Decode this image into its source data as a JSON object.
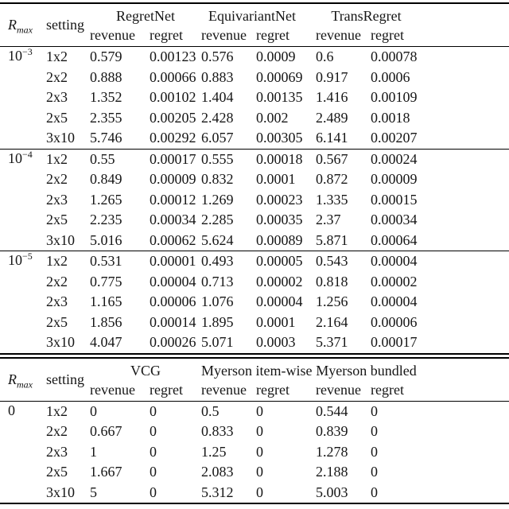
{
  "accent_colors": {
    "rule": "#000000",
    "text": "#161616",
    "background": "#ffffff"
  },
  "table1": {
    "rmax_label": {
      "base": "R",
      "sub": "max"
    },
    "setting_label": "setting",
    "subheaders": [
      "revenue",
      "regret"
    ],
    "groups": [
      "RegretNet",
      "EquivariantNet",
      "TransRegret"
    ],
    "blocks": [
      {
        "rmax": {
          "base": "10",
          "sup": "−3"
        },
        "rows": [
          {
            "setting": "1x2",
            "values": [
              "0.579",
              "0.00123",
              "0.576",
              "0.0009",
              "0.6",
              "0.00078"
            ]
          },
          {
            "setting": "2x2",
            "values": [
              "0.888",
              "0.00066",
              "0.883",
              "0.00069",
              "0.917",
              "0.0006"
            ]
          },
          {
            "setting": "2x3",
            "values": [
              "1.352",
              "0.00102",
              "1.404",
              "0.00135",
              "1.416",
              "0.00109"
            ]
          },
          {
            "setting": "2x5",
            "values": [
              "2.355",
              "0.00205",
              "2.428",
              "0.002",
              "2.489",
              "0.0018"
            ]
          },
          {
            "setting": "3x10",
            "values": [
              "5.746",
              "0.00292",
              "6.057",
              "0.00305",
              "6.141",
              "0.00207"
            ]
          }
        ]
      },
      {
        "rmax": {
          "base": "10",
          "sup": "−4"
        },
        "rows": [
          {
            "setting": "1x2",
            "values": [
              "0.55",
              "0.00017",
              "0.555",
              "0.00018",
              "0.567",
              "0.00024"
            ]
          },
          {
            "setting": "2x2",
            "values": [
              "0.849",
              "0.00009",
              "0.832",
              "0.0001",
              "0.872",
              "0.00009"
            ]
          },
          {
            "setting": "2x3",
            "values": [
              "1.265",
              "0.00012",
              "1.269",
              "0.00023",
              "1.335",
              "0.00015"
            ]
          },
          {
            "setting": "2x5",
            "values": [
              "2.235",
              "0.00034",
              "2.285",
              "0.00035",
              "2.37",
              "0.00034"
            ]
          },
          {
            "setting": "3x10",
            "values": [
              "5.016",
              "0.00062",
              "5.624",
              "0.00089",
              "5.871",
              "0.00064"
            ]
          }
        ]
      },
      {
        "rmax": {
          "base": "10",
          "sup": "−5"
        },
        "rows": [
          {
            "setting": "1x2",
            "values": [
              "0.531",
              "0.00001",
              "0.493",
              "0.00005",
              "0.543",
              "0.00004"
            ]
          },
          {
            "setting": "2x2",
            "values": [
              "0.775",
              "0.00004",
              "0.713",
              "0.00002",
              "0.818",
              "0.00002"
            ]
          },
          {
            "setting": "2x3",
            "values": [
              "1.165",
              "0.00006",
              "1.076",
              "0.00004",
              "1.256",
              "0.00004"
            ]
          },
          {
            "setting": "2x5",
            "values": [
              "1.856",
              "0.00014",
              "1.895",
              "0.0001",
              "2.164",
              "0.00006"
            ]
          },
          {
            "setting": "3x10",
            "values": [
              "4.047",
              "0.00026",
              "5.071",
              "0.0003",
              "5.371",
              "0.00017"
            ]
          }
        ]
      }
    ]
  },
  "table2": {
    "rmax_label": {
      "base": "R",
      "sub": "max"
    },
    "setting_label": "setting",
    "subheaders": [
      "revenue",
      "regret"
    ],
    "groups": [
      "VCG",
      "Myerson item-wise",
      "Myerson bundled"
    ],
    "blocks": [
      {
        "rmax": {
          "base": "0",
          "sup": ""
        },
        "rows": [
          {
            "setting": "1x2",
            "values": [
              "0",
              "0",
              "0.5",
              "0",
              "0.544",
              "0"
            ]
          },
          {
            "setting": "2x2",
            "values": [
              "0.667",
              "0",
              "0.833",
              "0",
              "0.839",
              "0"
            ]
          },
          {
            "setting": "2x3",
            "values": [
              "1",
              "0",
              "1.25",
              "0",
              "1.278",
              "0"
            ]
          },
          {
            "setting": "2x5",
            "values": [
              "1.667",
              "0",
              "2.083",
              "0",
              "2.188",
              "0"
            ]
          },
          {
            "setting": "3x10",
            "values": [
              "5",
              "0",
              "5.312",
              "0",
              "5.003",
              "0"
            ]
          }
        ]
      }
    ]
  }
}
